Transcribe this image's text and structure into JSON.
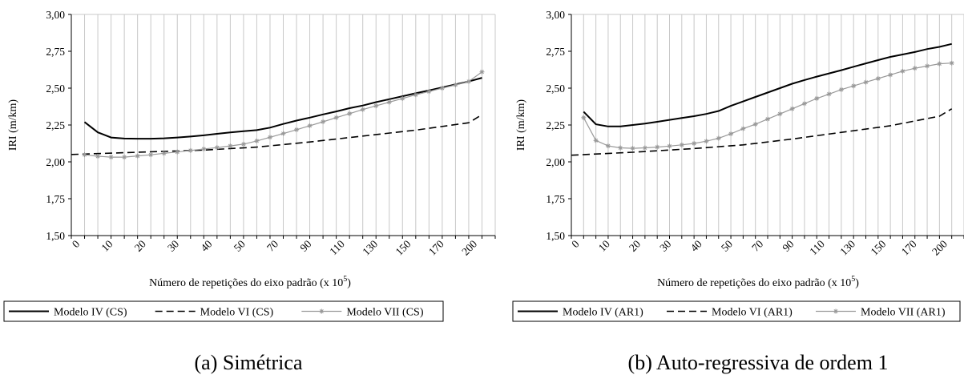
{
  "charts": [
    {
      "caption": "(a) Simétrica",
      "ylabel": "IRI (m/km)",
      "xlabel_main": "Número de repetições do eixo padrão (x 10",
      "xlabel_sup": "5",
      "xlabel_close": ")"
    },
    {
      "caption": "(b) Auto-regressiva de ordem 1",
      "ylabel": "IRI (m/km)",
      "xlabel_main": "Número de repetições do eixo padrão (x 10",
      "xlabel_sup": "5",
      "xlabel_close": ")"
    }
  ],
  "chart_data": [
    {
      "type": "line",
      "title": "(a) Simétrica",
      "ylabel": "IRI (m/km)",
      "xlabel": "Número de repetições do eixo padrão (x 10^5)",
      "ylim": [
        1.5,
        3.0
      ],
      "y_ticks": [
        "1,50",
        "1,75",
        "2,00",
        "2,25",
        "2,50",
        "2,75",
        "3,00"
      ],
      "x_tick_labels": [
        "0",
        "10",
        "20",
        "30",
        "40",
        "50",
        "70",
        "90",
        "110",
        "130",
        "150",
        "170",
        "200"
      ],
      "x_axis_categories": 32,
      "grid": "vertical",
      "legend_position": "bottom",
      "series": [
        {
          "name": "Modelo IV (CS)",
          "style": "solid",
          "color": "#000000",
          "x": [
            1,
            2,
            3,
            4,
            5,
            6,
            7,
            8,
            9,
            10,
            11,
            12,
            13,
            14,
            15,
            16,
            17,
            18,
            19,
            20,
            21,
            22,
            23,
            24,
            25,
            26,
            27,
            28,
            29,
            30,
            31
          ],
          "y": [
            2.27,
            2.2,
            2.165,
            2.158,
            2.157,
            2.157,
            2.16,
            2.165,
            2.172,
            2.18,
            2.19,
            2.2,
            2.208,
            2.215,
            2.232,
            2.257,
            2.28,
            2.3,
            2.322,
            2.342,
            2.364,
            2.382,
            2.405,
            2.425,
            2.445,
            2.465,
            2.485,
            2.505,
            2.525,
            2.545,
            2.57
          ]
        },
        {
          "name": "Modelo VI (CS)",
          "style": "dashed",
          "color": "#000000",
          "x": [
            0,
            5,
            10,
            14,
            18,
            22,
            26,
            30,
            31
          ],
          "y": [
            2.05,
            2.065,
            2.08,
            2.1,
            2.135,
            2.175,
            2.215,
            2.265,
            2.32
          ]
        },
        {
          "name": "Modelo VII (CS)",
          "style": "solid-star-markers",
          "color": "#999999",
          "x": [
            1,
            2,
            3,
            4,
            5,
            6,
            7,
            8,
            9,
            10,
            11,
            12,
            13,
            14,
            15,
            16,
            17,
            18,
            19,
            20,
            21,
            22,
            23,
            24,
            25,
            26,
            27,
            28,
            29,
            30,
            31
          ],
          "y": [
            2.048,
            2.038,
            2.032,
            2.032,
            2.04,
            2.048,
            2.058,
            2.067,
            2.077,
            2.087,
            2.097,
            2.108,
            2.12,
            2.142,
            2.167,
            2.192,
            2.218,
            2.245,
            2.272,
            2.3,
            2.327,
            2.355,
            2.38,
            2.405,
            2.43,
            2.455,
            2.477,
            2.5,
            2.522,
            2.545,
            2.61
          ]
        }
      ]
    },
    {
      "type": "line",
      "title": "(b) Auto-regressiva de ordem 1",
      "ylabel": "IRI (m/km)",
      "xlabel": "Número de repetições do eixo padrão (x 10^5)",
      "ylim": [
        1.5,
        3.0
      ],
      "y_ticks": [
        "1,50",
        "1,75",
        "2,00",
        "2,25",
        "2,50",
        "2,75",
        "3,00"
      ],
      "x_tick_labels": [
        "0",
        "10",
        "20",
        "30",
        "40",
        "50",
        "70",
        "90",
        "110",
        "130",
        "150",
        "170",
        "200"
      ],
      "x_axis_categories": 32,
      "grid": "vertical",
      "legend_position": "bottom",
      "series": [
        {
          "name": "Modelo IV (AR1)",
          "style": "solid",
          "color": "#000000",
          "x": [
            1,
            2,
            3,
            4,
            5,
            6,
            7,
            8,
            9,
            10,
            11,
            12,
            13,
            14,
            15,
            16,
            17,
            18,
            19,
            20,
            21,
            22,
            23,
            24,
            25,
            26,
            27,
            28,
            29,
            30,
            31
          ],
          "y": [
            2.34,
            2.255,
            2.24,
            2.24,
            2.25,
            2.26,
            2.272,
            2.285,
            2.298,
            2.31,
            2.325,
            2.345,
            2.38,
            2.41,
            2.44,
            2.47,
            2.5,
            2.53,
            2.555,
            2.578,
            2.6,
            2.622,
            2.645,
            2.668,
            2.69,
            2.712,
            2.728,
            2.745,
            2.765,
            2.78,
            2.8
          ]
        },
        {
          "name": "Modelo VI (AR1)",
          "style": "dashed",
          "color": "#000000",
          "x": [
            0,
            5,
            10,
            14,
            18,
            22,
            26,
            30,
            31
          ],
          "y": [
            2.045,
            2.065,
            2.09,
            2.115,
            2.155,
            2.2,
            2.245,
            2.31,
            2.36
          ]
        },
        {
          "name": "Modelo VII (AR1)",
          "style": "solid-star-markers",
          "color": "#999999",
          "x": [
            1,
            2,
            3,
            4,
            5,
            6,
            7,
            8,
            9,
            10,
            11,
            12,
            13,
            14,
            15,
            16,
            17,
            18,
            19,
            20,
            21,
            22,
            23,
            24,
            25,
            26,
            27,
            28,
            29,
            30,
            31
          ],
          "y": [
            2.3,
            2.145,
            2.108,
            2.095,
            2.092,
            2.095,
            2.1,
            2.107,
            2.115,
            2.125,
            2.14,
            2.16,
            2.19,
            2.225,
            2.255,
            2.29,
            2.325,
            2.36,
            2.395,
            2.43,
            2.46,
            2.49,
            2.515,
            2.54,
            2.565,
            2.59,
            2.615,
            2.635,
            2.65,
            2.665,
            2.67
          ]
        }
      ]
    }
  ]
}
